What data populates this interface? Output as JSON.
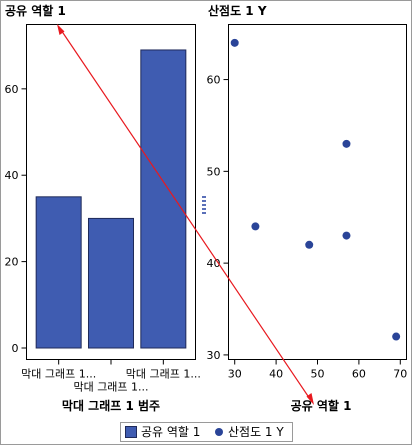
{
  "colors": {
    "bar_fill": "#3F5CB1",
    "bar_stroke": "#1F2A5A",
    "marker": "#2A4498",
    "overlay_line": "#E8191F",
    "splitter": "#5A6FB8",
    "border": "#9A9A9A"
  },
  "chart_data": [
    {
      "type": "bar",
      "title": "공유 역할 1",
      "categories": [
        "막대 그래프 1...",
        "막대 그래프 1...",
        "막대 그래프 1..."
      ],
      "values": [
        35,
        30,
        69
      ],
      "xlabel": "막대 그래프 1 범주",
      "ylabel": "",
      "ylim": [
        0,
        72
      ],
      "yticks": [
        0,
        20,
        40,
        60
      ],
      "grid": false,
      "legend_label": "공유 역할 1",
      "category_label_rows": [
        0,
        1,
        0
      ]
    },
    {
      "type": "scatter",
      "title": "산점도 1 Y",
      "x": [
        30,
        35,
        48,
        57,
        57,
        69
      ],
      "y": [
        64,
        44,
        42,
        53,
        43,
        32
      ],
      "xlabel": "공유 역할 1",
      "ylabel": "",
      "xlim": [
        28.5,
        71.5
      ],
      "ylim": [
        29.5,
        66
      ],
      "xticks": [
        30,
        40,
        50,
        60,
        70
      ],
      "yticks": [
        30,
        40,
        50,
        60
      ],
      "grid": false,
      "legend_label": "산점도 1 Y"
    }
  ],
  "legend": {
    "items": [
      "공유 역할 1",
      "산점도 1 Y"
    ],
    "placement": "bottom"
  }
}
